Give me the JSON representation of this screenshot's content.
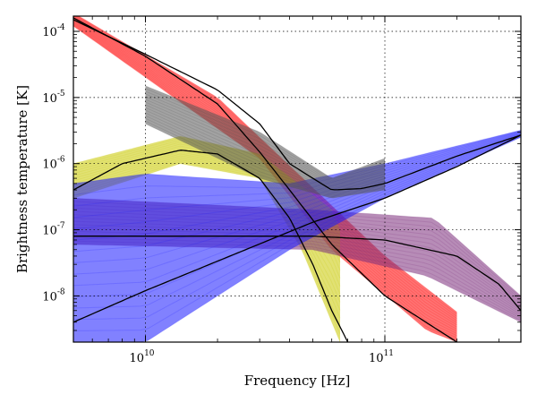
{
  "chart_data": {
    "type": "line",
    "xlabel": "Frequency [Hz]",
    "ylabel": "Brightness temperature [K]",
    "x_scale": "log",
    "y_scale": "log",
    "xlim": [
      5000000000.0,
      370000000000.0
    ],
    "ylim": [
      2e-09,
      0.00017
    ],
    "grid": true,
    "x_ticks": [
      {
        "value": 10000000000.0,
        "label": "10",
        "exp": "10"
      },
      {
        "value": 100000000000.0,
        "label": "10",
        "exp": "11"
      }
    ],
    "y_ticks": [
      {
        "value": 1e-08,
        "label": "10",
        "exp": "-8"
      },
      {
        "value": 1e-07,
        "label": "10",
        "exp": "-7"
      },
      {
        "value": 1e-06,
        "label": "10",
        "exp": "-6"
      },
      {
        "value": 1e-05,
        "label": "10",
        "exp": "-5"
      },
      {
        "value": 0.0001,
        "label": "10",
        "exp": "-4"
      }
    ],
    "bands": [
      {
        "color": "#ff0000",
        "lower": [
          [
            5000000000.0,
            0.00012
          ],
          [
            30000000000.0,
            1.2e-06
          ],
          [
            60000000000.0,
            5e-08
          ],
          [
            150000000000.0,
            3e-09
          ],
          [
            200000000000.0,
            2e-09
          ]
        ],
        "upper": [
          [
            5000000000.0,
            0.00019
          ],
          [
            20000000000.0,
            1e-05
          ],
          [
            100000000000.0,
            4e-08
          ],
          [
            290000000000.0,
            2e-09
          ]
        ]
      },
      {
        "color": "#c8c800",
        "lower": [
          [
            5000000000.0,
            3e-07
          ],
          [
            14000000000.0,
            1e-06
          ],
          [
            30000000000.0,
            6e-07
          ],
          [
            45000000000.0,
            5e-08
          ],
          [
            65000000000.0,
            2e-09
          ]
        ],
        "upper": [
          [
            5000000000.0,
            1e-06
          ],
          [
            14000000000.0,
            2.6e-06
          ],
          [
            30000000000.0,
            1.4e-06
          ],
          [
            60000000000.0,
            2e-07
          ],
          [
            100000000000.0,
            2e-09
          ]
        ]
      },
      {
        "color": "#7b2d7b",
        "lower": [
          [
            5000000000.0,
            6e-08
          ],
          [
            50000000000.0,
            5e-08
          ],
          [
            150000000000.0,
            2e-08
          ],
          [
            370000000000.0,
            4e-09
          ]
        ],
        "upper": [
          [
            5000000000.0,
            3e-07
          ],
          [
            50000000000.0,
            2e-07
          ],
          [
            160000000000.0,
            1.5e-07
          ],
          [
            370000000000.0,
            1e-08
          ]
        ]
      },
      {
        "color": "#1a1aff",
        "lower": [
          [
            5000000000.0,
            2e-09
          ],
          [
            10000000000.0,
            2e-09
          ],
          [
            40000000000.0,
            5e-08
          ],
          [
            100000000000.0,
            3e-07
          ],
          [
            370000000000.0,
            2.5e-06
          ]
        ],
        "upper": [
          [
            5000000000.0,
            5e-07
          ],
          [
            10000000000.0,
            7e-07
          ],
          [
            40000000000.0,
            5e-07
          ],
          [
            100000000000.0,
            1e-06
          ],
          [
            370000000000.0,
            3.2e-06
          ]
        ]
      },
      {
        "color": "#555555",
        "lower": [
          [
            10000000000.0,
            4e-06
          ],
          [
            30000000000.0,
            6e-07
          ],
          [
            60000000000.0,
            3e-07
          ],
          [
            100000000000.0,
            4e-07
          ]
        ],
        "upper": [
          [
            10000000000.0,
            1.5e-05
          ],
          [
            30000000000.0,
            3e-06
          ],
          [
            60000000000.0,
            6e-07
          ],
          [
            100000000000.0,
            1.2e-06
          ]
        ]
      }
    ],
    "series": [
      {
        "color": "#000000",
        "points": [
          [
            5000000000.0,
            0.00015
          ],
          [
            10000000000.0,
            4.5e-05
          ],
          [
            20000000000.0,
            1.3e-05
          ],
          [
            30000000000.0,
            4e-06
          ],
          [
            40000000000.0,
            1e-06
          ],
          [
            50000000000.0,
            6e-07
          ],
          [
            60000000000.0,
            4e-07
          ],
          [
            80000000000.0,
            4.2e-07
          ],
          [
            100000000000.0,
            5e-07
          ],
          [
            200000000000.0,
            1.3e-06
          ],
          [
            370000000000.0,
            2.7e-06
          ]
        ]
      },
      {
        "color": "#000000",
        "points": [
          [
            5000000000.0,
            0.00016
          ],
          [
            10000000000.0,
            4.2e-05
          ],
          [
            20000000000.0,
            8e-06
          ],
          [
            30000000000.0,
            1.5e-06
          ],
          [
            40000000000.0,
            4e-07
          ],
          [
            60000000000.0,
            6e-08
          ],
          [
            100000000000.0,
            1e-08
          ],
          [
            200000000000.0,
            2e-09
          ]
        ]
      },
      {
        "color": "#000000",
        "points": [
          [
            5000000000.0,
            4e-07
          ],
          [
            8000000000.0,
            1e-06
          ],
          [
            14000000000.0,
            1.6e-06
          ],
          [
            20000000000.0,
            1.4e-06
          ],
          [
            30000000000.0,
            6e-07
          ],
          [
            40000000000.0,
            1.5e-07
          ],
          [
            50000000000.0,
            3e-08
          ],
          [
            60000000000.0,
            6e-09
          ],
          [
            70000000000.0,
            2e-09
          ]
        ]
      },
      {
        "color": "#000000",
        "points": [
          [
            5000000000.0,
            8e-08
          ],
          [
            50000000000.0,
            8e-08
          ],
          [
            100000000000.0,
            7e-08
          ],
          [
            200000000000.0,
            4e-08
          ],
          [
            300000000000.0,
            1.5e-08
          ],
          [
            370000000000.0,
            6e-09
          ]
        ]
      },
      {
        "color": "#000000",
        "points": [
          [
            5000000000.0,
            4e-09
          ],
          [
            10000000000.0,
            1.2e-08
          ],
          [
            50000000000.0,
            1.3e-07
          ],
          [
            100000000000.0,
            3e-07
          ],
          [
            200000000000.0,
            9e-07
          ],
          [
            370000000000.0,
            2.7e-06
          ]
        ]
      }
    ]
  }
}
